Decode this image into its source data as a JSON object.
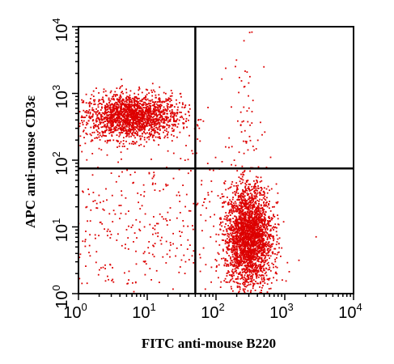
{
  "chart_data": {
    "type": "scatter",
    "title": "",
    "xlabel": "FITC anti-mouse B220",
    "ylabel": "APC anti-mouse CD3ε",
    "x_scale": "log",
    "y_scale": "log",
    "xlim": [
      1,
      10000
    ],
    "ylim": [
      1,
      10000
    ],
    "x_ticks": [
      {
        "base": "10",
        "exp": "0"
      },
      {
        "base": "10",
        "exp": "1"
      },
      {
        "base": "10",
        "exp": "2"
      },
      {
        "base": "10",
        "exp": "3"
      },
      {
        "base": "10",
        "exp": "4"
      }
    ],
    "y_ticks": [
      {
        "base": "10",
        "exp": "0"
      },
      {
        "base": "10",
        "exp": "1"
      },
      {
        "base": "10",
        "exp": "2"
      },
      {
        "base": "10",
        "exp": "3"
      },
      {
        "base": "10",
        "exp": "4"
      }
    ],
    "quadrant_gate": {
      "x": 50,
      "y": 75
    },
    "grid": false,
    "point_color": "#dd0000",
    "populations": [
      {
        "center_x": 6,
        "center_y": 450,
        "spread_x_decades": 0.35,
        "spread_y_decades": 0.17,
        "count": 1900
      },
      {
        "center_x": 300,
        "center_y": 7,
        "spread_x_decades": 0.17,
        "spread_y_decades": 0.38,
        "count": 2600
      },
      {
        "center_x": 10,
        "center_y": 8,
        "spread_x_decades": 0.9,
        "spread_y_decades": 0.7,
        "count": 450
      },
      {
        "center_x": 300,
        "center_y": 300,
        "spread_x_decades": 0.15,
        "spread_y_decades": 0.6,
        "count": 60
      }
    ]
  }
}
